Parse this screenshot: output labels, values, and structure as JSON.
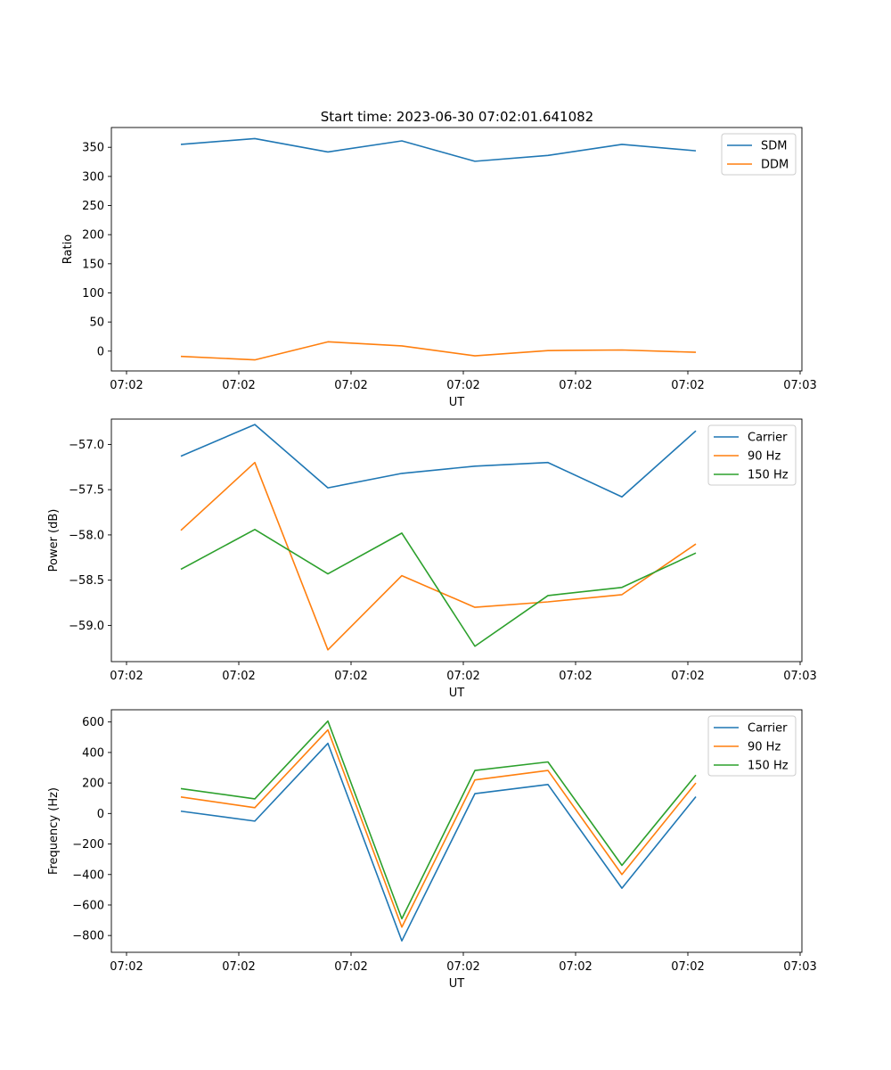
{
  "figure": {
    "title": "Start time: 2023-06-30 07:02:01.641082"
  },
  "chart_data": [
    {
      "type": "line",
      "title": "Start time: 2023-06-30 07:02:01.641082",
      "xlabel": "UT",
      "ylabel": "Ratio",
      "x_tick_labels": [
        "07:02",
        "07:02",
        "07:02",
        "07:02",
        "07:02",
        "07:02",
        "07:03"
      ],
      "y_ticks": [
        0,
        50,
        100,
        150,
        200,
        250,
        300,
        350
      ],
      "ylim": [
        -34,
        384
      ],
      "legend_position": "top-right",
      "grid": false,
      "series": [
        {
          "name": "SDM",
          "color": "#1f77b4",
          "values": [
            355,
            365,
            342,
            361,
            326,
            336,
            355,
            344
          ]
        },
        {
          "name": "DDM",
          "color": "#ff7f0e",
          "values": [
            -9,
            -15,
            16,
            9,
            -8,
            1,
            2,
            -2
          ]
        }
      ]
    },
    {
      "type": "line",
      "xlabel": "UT",
      "ylabel": "Power (dB)",
      "x_tick_labels": [
        "07:02",
        "07:02",
        "07:02",
        "07:02",
        "07:02",
        "07:02",
        "07:03"
      ],
      "y_ticks": [
        -59.0,
        -58.5,
        -58.0,
        -57.5,
        -57.0
      ],
      "y_tick_labels": [
        "−59.0",
        "−58.5",
        "−58.0",
        "−57.5",
        "−57.0"
      ],
      "ylim": [
        -59.4,
        -56.72
      ],
      "legend_position": "top-right",
      "grid": false,
      "series": [
        {
          "name": "Carrier",
          "color": "#1f77b4",
          "values": [
            -57.13,
            -56.78,
            -57.48,
            -57.32,
            -57.24,
            -57.2,
            -57.58,
            -56.85
          ]
        },
        {
          "name": "90 Hz",
          "color": "#ff7f0e",
          "values": [
            -57.95,
            -57.2,
            -59.27,
            -58.45,
            -58.8,
            -58.74,
            -58.66,
            -58.1
          ]
        },
        {
          "name": "150 Hz",
          "color": "#2ca02c",
          "values": [
            -58.38,
            -57.94,
            -58.43,
            -57.98,
            -59.23,
            -58.67,
            -58.58,
            -58.2
          ]
        }
      ]
    },
    {
      "type": "line",
      "xlabel": "UT",
      "ylabel": "Frequency (Hz)",
      "x_tick_labels": [
        "07:02",
        "07:02",
        "07:02",
        "07:02",
        "07:02",
        "07:02",
        "07:03"
      ],
      "y_ticks": [
        -800,
        -600,
        -400,
        -200,
        0,
        200,
        400,
        600
      ],
      "y_tick_labels": [
        "−800",
        "−600",
        "−400",
        "−200",
        "0",
        "200",
        "400",
        "600"
      ],
      "ylim": [
        -910,
        680
      ],
      "legend_position": "top-right",
      "grid": false,
      "series": [
        {
          "name": "Carrier",
          "color": "#1f77b4",
          "values": [
            15,
            -50,
            460,
            -835,
            130,
            190,
            -490,
            110
          ]
        },
        {
          "name": "90 Hz",
          "color": "#ff7f0e",
          "values": [
            108,
            38,
            548,
            -745,
            220,
            282,
            -400,
            200
          ]
        },
        {
          "name": "150 Hz",
          "color": "#2ca02c",
          "values": [
            163,
            96,
            606,
            -690,
            282,
            338,
            -340,
            252
          ]
        }
      ]
    }
  ]
}
